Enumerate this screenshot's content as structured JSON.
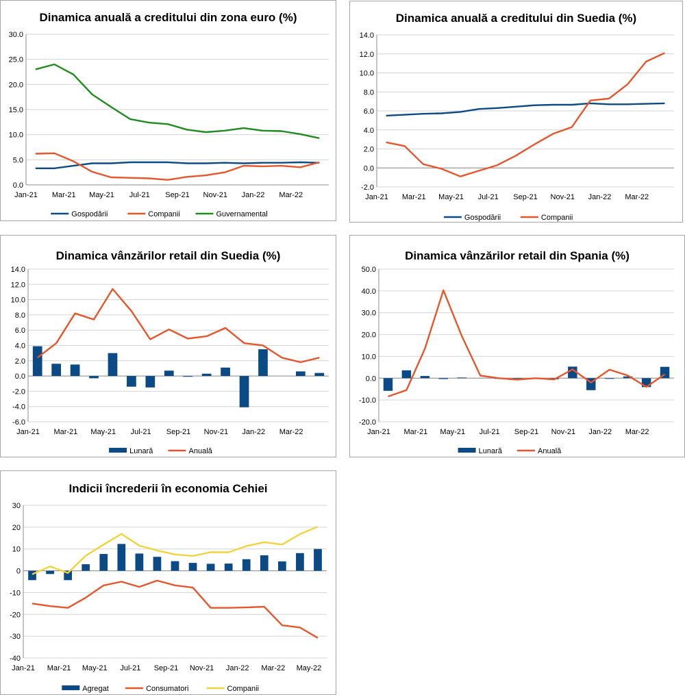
{
  "colors": {
    "blue": "#0c4a86",
    "orange": "#e8552a",
    "green": "#1e8c1e",
    "yellow": "#f2d43a",
    "grid": "#d4d4d4"
  },
  "chart_data": [
    {
      "type": "line",
      "title": "Dinamica anuală a creditului din zona euro (%)",
      "x": [
        "Jan-21",
        "Feb-21",
        "Mar-21",
        "Apr-21",
        "May-21",
        "Jun-21",
        "Jul-21",
        "Aug-21",
        "Sep-21",
        "Oct-21",
        "Nov-21",
        "Dec-21",
        "Jan-22",
        "Feb-22",
        "Mar-22",
        "Apr-22"
      ],
      "x_tick_labels": [
        "Jan-21",
        "",
        "Mar-21",
        "",
        "May-21",
        "",
        "Jul-21",
        "",
        "Sep-21",
        "",
        "Nov-21",
        "",
        "Jan-22",
        "",
        "Mar-22",
        ""
      ],
      "ylim": [
        0,
        30
      ],
      "ystep": 5,
      "ydecimals": 1,
      "series": [
        {
          "name": "Gospodării",
          "kind": "line",
          "color": "#0c4a86",
          "values": [
            3.3,
            3.3,
            3.8,
            4.3,
            4.3,
            4.5,
            4.5,
            4.5,
            4.3,
            4.3,
            4.4,
            4.3,
            4.4,
            4.4,
            4.5,
            4.4
          ]
        },
        {
          "name": "Companii",
          "kind": "line",
          "color": "#e8552a",
          "values": [
            6.2,
            6.3,
            4.7,
            2.6,
            1.5,
            1.4,
            1.3,
            1.0,
            1.6,
            1.9,
            2.5,
            3.8,
            3.7,
            3.8,
            3.5,
            4.5
          ]
        },
        {
          "name": "Guvernamental",
          "kind": "line",
          "color": "#1e8c1e",
          "values": [
            23.0,
            24.0,
            22.0,
            18.0,
            15.5,
            13.1,
            12.4,
            12.1,
            11.0,
            10.5,
            10.8,
            11.3,
            10.8,
            10.7,
            10.1,
            9.3
          ]
        }
      ]
    },
    {
      "type": "line",
      "title": "Dinamica anuală a creditului din Suedia (%)",
      "x": [
        "Jan-21",
        "Feb-21",
        "Mar-21",
        "Apr-21",
        "May-21",
        "Jun-21",
        "Jul-21",
        "Aug-21",
        "Sep-21",
        "Oct-21",
        "Nov-21",
        "Dec-21",
        "Jan-22",
        "Feb-22",
        "Mar-22",
        "Apr-22"
      ],
      "x_tick_labels": [
        "Jan-21",
        "",
        "Mar-21",
        "",
        "May-21",
        "",
        "Jul-21",
        "",
        "Sep-21",
        "",
        "Nov-21",
        "",
        "Jan-22",
        "",
        "Mar-22",
        ""
      ],
      "ylim": [
        -2,
        14
      ],
      "ystep": 2,
      "ydecimals": 1,
      "series": [
        {
          "name": "Gospodării",
          "kind": "line",
          "color": "#0c4a86",
          "values": [
            5.5,
            5.6,
            5.7,
            5.75,
            5.9,
            6.2,
            6.3,
            6.45,
            6.6,
            6.65,
            6.65,
            6.8,
            6.7,
            6.7,
            6.75,
            6.8
          ]
        },
        {
          "name": "Companii",
          "kind": "line",
          "color": "#e8552a",
          "values": [
            2.7,
            2.3,
            0.4,
            -0.1,
            -0.9,
            -0.3,
            0.3,
            1.3,
            2.5,
            3.6,
            4.3,
            7.1,
            7.3,
            8.8,
            11.2,
            12.1
          ]
        }
      ]
    },
    {
      "type": "bar+line",
      "title": "Dinamica vânzărilor retail din Suedia (%)",
      "x": [
        "Jan-21",
        "Feb-21",
        "Mar-21",
        "Apr-21",
        "May-21",
        "Jun-21",
        "Jul-21",
        "Aug-21",
        "Sep-21",
        "Oct-21",
        "Nov-21",
        "Dec-21",
        "Jan-22",
        "Feb-22",
        "Mar-22",
        "Apr-22"
      ],
      "x_tick_labels": [
        "Jan-21",
        "",
        "Mar-21",
        "",
        "May-21",
        "",
        "Jul-21",
        "",
        "Sep-21",
        "",
        "Nov-21",
        "",
        "Jan-22",
        "",
        "Mar-22",
        ""
      ],
      "ylim": [
        -6,
        14
      ],
      "ystep": 2,
      "ydecimals": 1,
      "series": [
        {
          "name": "Lunară",
          "kind": "bar",
          "color": "#0c4a86",
          "values": [
            3.9,
            1.6,
            1.5,
            -0.3,
            3.0,
            -1.4,
            -1.5,
            0.7,
            -0.1,
            0.3,
            1.1,
            -4.1,
            3.5,
            0.0,
            0.6,
            0.4
          ]
        },
        {
          "name": "Anuală",
          "kind": "line",
          "color": "#e8552a",
          "values": [
            2.4,
            4.3,
            8.2,
            7.4,
            11.4,
            8.5,
            4.8,
            6.1,
            4.9,
            5.2,
            6.3,
            4.3,
            4.0,
            2.4,
            1.8,
            2.4
          ]
        }
      ]
    },
    {
      "type": "bar+line",
      "title": "Dinamica vânzărilor retail din Spania (%)",
      "x": [
        "Jan-21",
        "Feb-21",
        "Mar-21",
        "Apr-21",
        "May-21",
        "Jun-21",
        "Jul-21",
        "Aug-21",
        "Sep-21",
        "Oct-21",
        "Nov-21",
        "Dec-21",
        "Jan-22",
        "Feb-22",
        "Mar-22",
        "Apr-22"
      ],
      "x_tick_labels": [
        "Jan-21",
        "",
        "Mar-21",
        "",
        "May-21",
        "",
        "Jul-21",
        "",
        "Sep-21",
        "",
        "Nov-21",
        "",
        "Jan-22",
        "",
        "Mar-22",
        ""
      ],
      "ylim": [
        -20,
        50
      ],
      "ystep": 10,
      "ydecimals": 1,
      "series": [
        {
          "name": "Lunară",
          "kind": "bar",
          "color": "#0c4a86",
          "values": [
            -5.8,
            3.6,
            1.0,
            -0.4,
            0.3,
            0.0,
            -0.2,
            -0.3,
            0.2,
            -0.5,
            5.3,
            -5.5,
            -0.3,
            0.8,
            -4.1,
            5.2
          ]
        },
        {
          "name": "Anuală",
          "kind": "line",
          "color": "#e8552a",
          "values": [
            -8.4,
            -5.5,
            13.5,
            40.3,
            19.3,
            1.2,
            0.0,
            -0.7,
            0.0,
            -0.6,
            4.0,
            -2.0,
            3.9,
            1.2,
            -4.0,
            1.8
          ]
        }
      ]
    },
    {
      "type": "bar+line",
      "title": "Indicii încrederii în economia Cehiei",
      "x": [
        "Jan-21",
        "Feb-21",
        "Mar-21",
        "Apr-21",
        "May-21",
        "Jun-21",
        "Jul-21",
        "Aug-21",
        "Sep-21",
        "Oct-21",
        "Nov-21",
        "Dec-21",
        "Jan-22",
        "Feb-22",
        "Mar-22",
        "Apr-22",
        "May-22"
      ],
      "x_tick_labels": [
        "Jan-21",
        "",
        "Mar-21",
        "",
        "May-21",
        "",
        "Jul-21",
        "",
        "Sep-21",
        "",
        "Nov-21",
        "",
        "Jan-22",
        "",
        "Mar-22",
        "",
        "May-22"
      ],
      "ylim": [
        -40,
        30
      ],
      "ystep": 10,
      "ydecimals": 0,
      "series": [
        {
          "name": "Agregat",
          "kind": "bar",
          "color": "#0c4a86",
          "values": [
            -4.3,
            -1.5,
            -4.3,
            3.0,
            7.7,
            12.3,
            7.9,
            6.4,
            4.4,
            3.6,
            3.2,
            3.3,
            5.3,
            7.1,
            4.3,
            8.1,
            10.0
          ]
        },
        {
          "name": "Consumatori",
          "kind": "line",
          "color": "#e8552a",
          "values": [
            -15.0,
            -16.2,
            -17.0,
            -12.3,
            -6.7,
            -5.0,
            -7.4,
            -4.5,
            -6.7,
            -7.7,
            -17.0,
            -17.0,
            -16.8,
            -16.5,
            -25.0,
            -26.0,
            -30.8
          ]
        },
        {
          "name": "Companii",
          "kind": "line",
          "color": "#f2d43a",
          "values": [
            -1.6,
            2.0,
            -1.0,
            6.9,
            12.0,
            16.9,
            11.5,
            9.3,
            7.5,
            6.8,
            8.5,
            8.5,
            11.3,
            13.1,
            12.0,
            16.8,
            20.2
          ]
        }
      ]
    }
  ]
}
